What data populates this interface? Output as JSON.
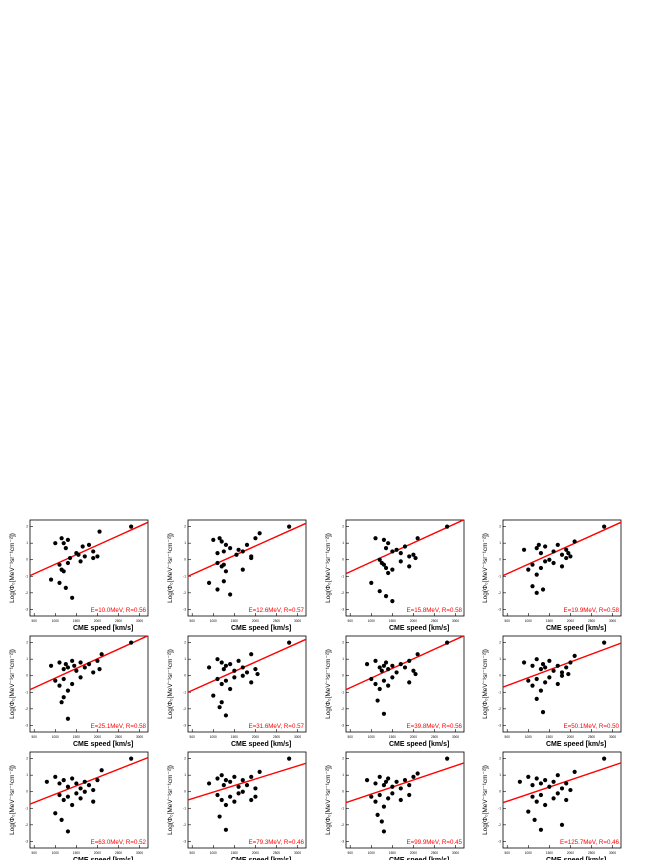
{
  "figure": {
    "xlabel": "CME speed [km/s]",
    "ylabel": "Log(Φ₀[MeV⁻¹sr⁻¹cm⁻²])",
    "xticks": [
      "500",
      "1000",
      "1500",
      "2000",
      "2500",
      "3000"
    ]
  },
  "chart_data": [
    {
      "type": "scatter",
      "annotation": "E=10.0MeV, R=0.56",
      "xlim": [
        400,
        3200
      ],
      "ylim": [
        -3.4,
        2.4
      ],
      "yticks": [
        "-3",
        "-2",
        "-1",
        "0",
        "1",
        "2"
      ],
      "x": [
        1000,
        1200,
        1150,
        1250,
        1300,
        1350,
        1500,
        1550,
        1650,
        1700,
        1800,
        1900,
        1100,
        1150,
        1200,
        1300,
        900,
        1100,
        1250,
        1400,
        2000,
        1600,
        1900,
        2050,
        2800
      ],
      "y": [
        1.0,
        1.0,
        1.3,
        0.7,
        1.2,
        0.1,
        0.4,
        0.3,
        0.8,
        0.2,
        0.9,
        0.5,
        -0.3,
        -0.6,
        -0.7,
        -0.2,
        -1.2,
        -1.4,
        -1.7,
        -2.3,
        0.2,
        -0.1,
        0.1,
        1.7,
        2.0
      ],
      "fit": [
        [
          400,
          -0.96
        ],
        [
          3200,
          2.26
        ]
      ]
    },
    {
      "type": "scatter",
      "annotation": "E=12.6MeV, R=0.57",
      "xlim": [
        400,
        3200
      ],
      "ylim": [
        -3.4,
        2.4
      ],
      "yticks": [
        "-3",
        "-2",
        "-1",
        "0",
        "1",
        "2"
      ],
      "x": [
        1000,
        1150,
        1200,
        1300,
        1100,
        1250,
        1400,
        1550,
        1600,
        1700,
        1800,
        1900,
        2000,
        1100,
        1200,
        1250,
        1300,
        1700,
        900,
        1100,
        1250,
        1400,
        1900,
        2100,
        2800
      ],
      "y": [
        1.2,
        1.3,
        1.1,
        0.9,
        0.4,
        0.5,
        0.7,
        0.3,
        0.6,
        0.5,
        0.9,
        0.2,
        1.3,
        -0.2,
        -0.4,
        -0.3,
        -0.7,
        -0.6,
        -1.4,
        -1.8,
        -1.3,
        -2.1,
        0.1,
        1.6,
        2.0
      ],
      "fit": [
        [
          400,
          -1.0
        ],
        [
          3200,
          2.2
        ]
      ]
    },
    {
      "type": "scatter",
      "annotation": "E=15.8MeV, R=0.58",
      "xlim": [
        400,
        3200
      ],
      "ylim": [
        -3.4,
        2.4
      ],
      "yticks": [
        "-3",
        "-2",
        "-1",
        "0",
        "1",
        "2"
      ],
      "x": [
        1100,
        1300,
        1400,
        1350,
        1500,
        1600,
        1700,
        1800,
        1900,
        2000,
        2050,
        1200,
        1250,
        1300,
        1350,
        1400,
        1500,
        1700,
        1900,
        2100,
        1000,
        1200,
        1350,
        1500,
        2800
      ],
      "y": [
        1.3,
        1.2,
        1.0,
        0.7,
        0.5,
        0.6,
        0.4,
        0.8,
        0.2,
        0.3,
        0.1,
        0.0,
        -0.2,
        -0.3,
        -0.5,
        -0.8,
        -0.6,
        -0.1,
        -0.4,
        1.3,
        -1.4,
        -1.9,
        -2.2,
        -2.5,
        2.0
      ],
      "fit": [
        [
          400,
          -0.84
        ],
        [
          3200,
          2.42
        ]
      ]
    },
    {
      "type": "scatter",
      "annotation": "E=19.9MeV, R=0.58",
      "xlim": [
        400,
        3200
      ],
      "ylim": [
        -3.4,
        2.4
      ],
      "yticks": [
        "-3",
        "-2",
        "-1",
        "0",
        "1",
        "2"
      ],
      "x": [
        900,
        1200,
        1250,
        1300,
        1400,
        1600,
        1700,
        1800,
        1900,
        1950,
        2000,
        2100,
        1000,
        1100,
        1200,
        1300,
        1400,
        1500,
        1600,
        1800,
        1900,
        1100,
        1200,
        1350,
        2800
      ],
      "y": [
        0.6,
        0.7,
        0.9,
        0.4,
        0.8,
        0.5,
        0.9,
        0.3,
        0.6,
        0.4,
        0.2,
        1.1,
        -0.6,
        -0.3,
        -0.9,
        -0.5,
        -0.1,
        0.0,
        -0.2,
        -0.4,
        0.1,
        -1.6,
        -2.0,
        -1.8,
        2.0
      ],
      "fit": [
        [
          400,
          -0.96
        ],
        [
          3200,
          2.26
        ]
      ]
    },
    {
      "type": "scatter",
      "annotation": "E=25.1MeV, R=0.58",
      "xlim": [
        400,
        3200
      ],
      "ylim": [
        -3.4,
        2.4
      ],
      "yticks": [
        "-3",
        "-2",
        "-1",
        "0",
        "1",
        "2"
      ],
      "x": [
        900,
        1100,
        1200,
        1250,
        1300,
        1400,
        1450,
        1500,
        1600,
        1700,
        1800,
        1900,
        2000,
        2050,
        2100,
        1000,
        1100,
        1200,
        1300,
        1400,
        1600,
        1200,
        1150,
        1300,
        2800
      ],
      "y": [
        0.6,
        0.8,
        0.4,
        0.7,
        0.5,
        0.9,
        0.6,
        0.3,
        0.8,
        0.5,
        0.7,
        0.2,
        0.9,
        0.4,
        1.3,
        -0.3,
        -0.6,
        -0.2,
        -0.9,
        -0.5,
        -0.1,
        -1.3,
        -1.6,
        -2.6,
        2.0
      ],
      "fit": [
        [
          400,
          -0.84
        ],
        [
          3200,
          2.42
        ]
      ]
    },
    {
      "type": "scatter",
      "annotation": "E=31.6MeV, R=0.57",
      "xlim": [
        400,
        3200
      ],
      "ylim": [
        -3.4,
        2.4
      ],
      "yticks": [
        "-3",
        "-2",
        "-1",
        "0",
        "1",
        "2"
      ],
      "x": [
        900,
        1100,
        1200,
        1300,
        1250,
        1400,
        1500,
        1600,
        1700,
        1800,
        1900,
        2000,
        2050,
        1100,
        1200,
        1300,
        1400,
        1500,
        1700,
        1900,
        1000,
        1200,
        1300,
        1150,
        2800
      ],
      "y": [
        0.5,
        1.0,
        0.8,
        0.6,
        0.4,
        0.7,
        0.3,
        0.9,
        0.5,
        0.2,
        1.3,
        0.4,
        0.1,
        -0.2,
        -0.5,
        -0.3,
        -0.8,
        -0.1,
        0.0,
        -0.4,
        -1.2,
        -1.6,
        -2.4,
        -1.9,
        2.0
      ],
      "fit": [
        [
          400,
          -1.0
        ],
        [
          3200,
          2.2
        ]
      ]
    },
    {
      "type": "scatter",
      "annotation": "E=39.8MeV, R=0.56",
      "xlim": [
        400,
        3200
      ],
      "ylim": [
        -3.4,
        2.4
      ],
      "yticks": [
        "-3",
        "-2",
        "-1",
        "0",
        "1",
        "2"
      ],
      "x": [
        900,
        1100,
        1200,
        1250,
        1300,
        1350,
        1400,
        1500,
        1600,
        1700,
        1800,
        1900,
        2000,
        2050,
        2100,
        1000,
        1100,
        1200,
        1300,
        1400,
        1500,
        1900,
        1150,
        1300,
        2800
      ],
      "y": [
        0.7,
        0.9,
        0.5,
        0.3,
        0.6,
        0.8,
        0.4,
        0.6,
        0.2,
        0.7,
        0.5,
        0.9,
        0.3,
        0.1,
        1.3,
        -0.2,
        -0.5,
        -0.8,
        -0.3,
        -0.6,
        -0.1,
        -0.4,
        -1.5,
        -2.3,
        2.0
      ],
      "fit": [
        [
          400,
          -0.84
        ],
        [
          3200,
          2.42
        ]
      ]
    },
    {
      "type": "scatter",
      "annotation": "E=50.1MeV, R=0.50",
      "xlim": [
        400,
        3200
      ],
      "ylim": [
        -3.4,
        2.4
      ],
      "yticks": [
        "-3",
        "-2",
        "-1",
        "0",
        "1",
        "2"
      ],
      "x": [
        900,
        1100,
        1200,
        1300,
        1350,
        1400,
        1500,
        1600,
        1700,
        1800,
        1900,
        2000,
        1950,
        2100,
        1000,
        1100,
        1200,
        1300,
        1400,
        1500,
        1700,
        1800,
        1200,
        1350,
        2800
      ],
      "y": [
        0.8,
        0.6,
        1.0,
        0.4,
        0.7,
        0.5,
        0.9,
        0.3,
        0.6,
        0.2,
        0.5,
        0.8,
        0.1,
        1.2,
        -0.3,
        -0.6,
        -0.2,
        -0.9,
        -0.4,
        -0.1,
        -0.5,
        0.0,
        -1.4,
        -2.2,
        2.0
      ],
      "fit": [
        [
          400,
          -0.69
        ],
        [
          3200,
          1.97
        ]
      ]
    },
    {
      "type": "scatter",
      "annotation": "E=63.0MeV, R=0.52",
      "xlim": [
        400,
        3200
      ],
      "ylim": [
        -3.4,
        2.4
      ],
      "yticks": [
        "-3",
        "-2",
        "-1",
        "0",
        "1",
        "2"
      ],
      "x": [
        800,
        1000,
        1100,
        1200,
        1300,
        1400,
        1500,
        1600,
        1700,
        1800,
        1900,
        2000,
        2100,
        1100,
        1200,
        1300,
        1400,
        1500,
        1600,
        1700,
        1900,
        1000,
        1150,
        1300,
        2800
      ],
      "y": [
        0.6,
        0.9,
        0.5,
        0.7,
        0.3,
        0.8,
        0.5,
        0.2,
        0.6,
        0.4,
        0.1,
        0.7,
        1.3,
        -0.2,
        -0.5,
        -0.3,
        -0.8,
        -0.1,
        -0.4,
        0.0,
        -0.6,
        -1.3,
        -1.7,
        -2.4,
        2.0
      ],
      "fit": [
        [
          400,
          -0.75
        ],
        [
          3200,
          2.06
        ]
      ]
    },
    {
      "type": "scatter",
      "annotation": "E=79.3MeV, R=0.46",
      "xlim": [
        400,
        3200
      ],
      "ylim": [
        -3.4,
        2.4
      ],
      "yticks": [
        "-3",
        "-2",
        "-1",
        "0",
        "1",
        "2"
      ],
      "x": [
        900,
        1100,
        1200,
        1250,
        1300,
        1400,
        1500,
        1600,
        1700,
        1800,
        1900,
        2000,
        2100,
        1100,
        1200,
        1300,
        1400,
        1500,
        1600,
        1700,
        1900,
        2000,
        1150,
        1300,
        2800
      ],
      "y": [
        0.5,
        0.8,
        1.0,
        0.4,
        0.7,
        0.6,
        0.9,
        0.3,
        0.7,
        0.4,
        0.9,
        0.2,
        1.2,
        -0.2,
        -0.5,
        -0.8,
        -0.3,
        -0.6,
        -0.1,
        0.0,
        -0.5,
        -0.3,
        -1.5,
        -2.3,
        2.0
      ],
      "fit": [
        [
          400,
          -0.5
        ],
        [
          3200,
          1.72
        ]
      ]
    },
    {
      "type": "scatter",
      "annotation": "E=99.9MeV, R=0.45",
      "xlim": [
        400,
        3200
      ],
      "ylim": [
        -3.4,
        2.4
      ],
      "yticks": [
        "-3",
        "-2",
        "-1",
        "0",
        "1",
        "2"
      ],
      "x": [
        900,
        1100,
        1200,
        1300,
        1350,
        1400,
        1500,
        1600,
        1700,
        1800,
        1900,
        2000,
        2100,
        1000,
        1100,
        1200,
        1300,
        1400,
        1500,
        1700,
        1900,
        1150,
        1250,
        1300,
        2800
      ],
      "y": [
        0.7,
        0.5,
        0.9,
        0.4,
        0.6,
        0.8,
        0.3,
        0.6,
        0.2,
        0.7,
        0.4,
        0.9,
        1.1,
        -0.3,
        -0.6,
        -0.2,
        -0.9,
        -0.4,
        -0.1,
        -0.5,
        -0.2,
        -1.4,
        -1.8,
        -2.4,
        2.0
      ],
      "fit": [
        [
          400,
          -0.66
        ],
        [
          3200,
          1.74
        ]
      ]
    },
    {
      "type": "scatter",
      "annotation": "E=125.7MeV, R=0.46",
      "xlim": [
        400,
        3200
      ],
      "ylim": [
        -3.4,
        2.4
      ],
      "yticks": [
        "-3",
        "-2",
        "-1",
        "0",
        "1",
        "2"
      ],
      "x": [
        800,
        1000,
        1100,
        1200,
        1300,
        1400,
        1500,
        1600,
        1700,
        1800,
        1900,
        2000,
        2100,
        1100,
        1200,
        1300,
        1400,
        1600,
        1700,
        1900,
        1000,
        1150,
        1300,
        1800,
        2800
      ],
      "y": [
        0.6,
        0.9,
        0.4,
        0.8,
        0.5,
        0.7,
        0.3,
        0.6,
        1.0,
        0.2,
        0.5,
        0.1,
        1.2,
        -0.3,
        -0.6,
        -0.2,
        -0.8,
        -0.4,
        -0.1,
        -0.5,
        -1.2,
        -1.7,
        -2.3,
        -2.0,
        2.0
      ],
      "fit": [
        [
          400,
          -0.66
        ],
        [
          3200,
          1.74
        ]
      ]
    }
  ]
}
